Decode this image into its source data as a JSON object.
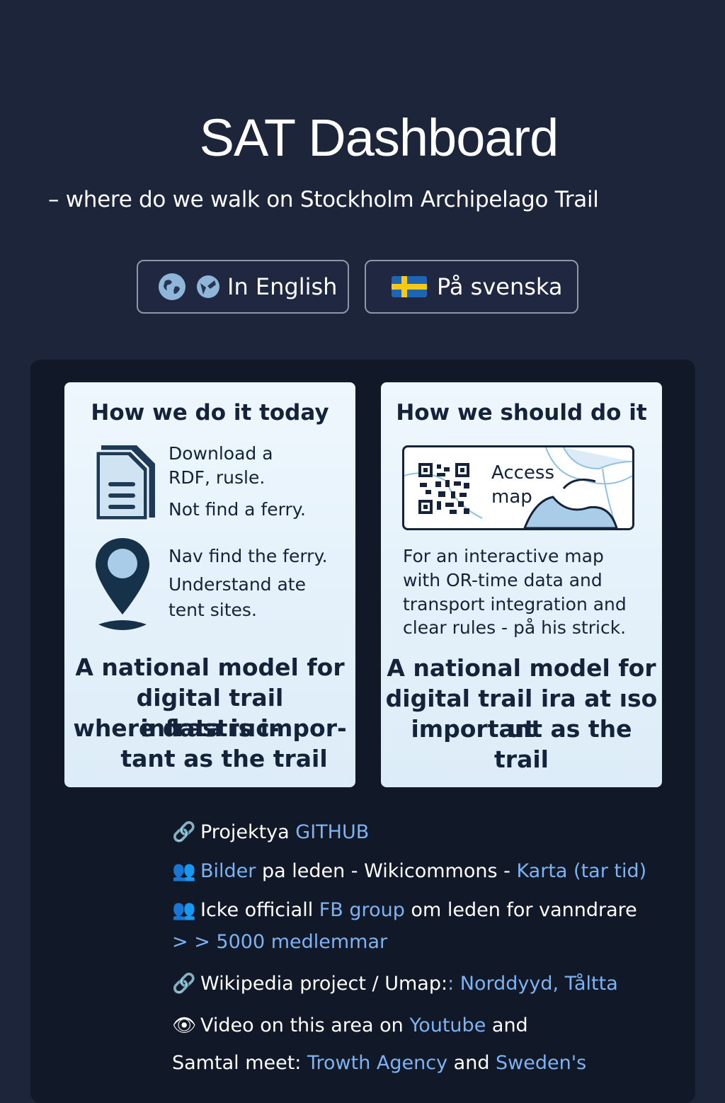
{
  "header": {
    "title": "SAT Dashboard",
    "subtitle": "– where do we walk on Stockholm Archipelago Trail"
  },
  "language_buttons": {
    "english_label": "In English",
    "swedish_label": "På svenska"
  },
  "cards": {
    "today": {
      "title": "How we do it today",
      "item1_line1": "Download a",
      "item1_line2": "RDF, rusle.",
      "item1_line3": "Not find a ferry.",
      "item2_line1": "Nav find the ferry.",
      "item2_line2": "Understand ate",
      "item2_line3": "tent sites.",
      "statement_line1": "A national  model for",
      "statement_line2": "digital trail infrastruc-",
      "statement_line3": "where data is impor-",
      "statement_line4": "tant as the trail"
    },
    "should": {
      "title": "How we should do it",
      "map_label_line1": "Access",
      "map_label_line2": "map",
      "desc_line1": "For an interactive map",
      "desc_line2": "with OR-time data and",
      "desc_line3": "transport integration and",
      "desc_line4": "clear rules -  på his strick.",
      "statement_line1": "A national model for",
      "statement_line2": "digital trail ira at ıso ut",
      "statement_line3": "important as the trail"
    }
  },
  "links": {
    "github": {
      "icon": "🔗",
      "text": "Projektya ",
      "link": "GITHUB"
    },
    "photos": {
      "text_link1": "Bilder",
      "text_mid": " pa leden - Wikicommons - ",
      "link2": "Karta (tar tid)"
    },
    "fb": {
      "text": "Icke officiall ",
      "link": "FB group",
      "text_after": " om leden  for vanndrare"
    },
    "members": {
      "text": "> > 5000 medlemmar"
    },
    "wiki": {
      "text": "Wikipedia project / Umap:",
      "link": ": Norddyyd, Tåltta"
    },
    "video": {
      "text": "Video on this area on ",
      "link": "Youtube",
      "text_after": " and"
    },
    "samtal": {
      "text": "Samtal meet: ",
      "link1": "Trowth Agency",
      "mid": " and ",
      "link2": "Sweden's"
    }
  },
  "colors": {
    "background": "#1d253b",
    "panel": "#111827",
    "link": "#7db3f3",
    "card_text": "#15233a"
  }
}
